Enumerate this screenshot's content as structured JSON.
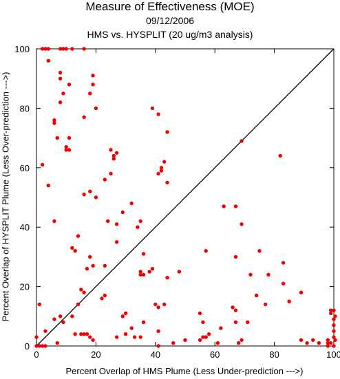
{
  "chart_data": {
    "type": "scatter",
    "title": "Measure of Effectiveness (MOE)",
    "subtitle": "09/12/2006",
    "subtitle2": "HMS vs. HYSPLIT  (20 ug/m3 analysis)",
    "xlabel": "Percent Overlap of HMS Plume (Less Under-prediction --->)",
    "ylabel": "Percent Overlap of HYSPLIT Plume (Less Over-prediction --->)",
    "xlim": [
      0,
      100
    ],
    "ylim": [
      0,
      100
    ],
    "xticks": [
      "0",
      "20",
      "40",
      "60",
      "80",
      "100"
    ],
    "yticks": [
      "0",
      "20",
      "40",
      "60",
      "80",
      "100"
    ],
    "reference_line": "y = x",
    "grid": false,
    "marker_color": "#ee0000",
    "points": [
      [
        2,
        100
      ],
      [
        3,
        100
      ],
      [
        4,
        100
      ],
      [
        8,
        100
      ],
      [
        9,
        100
      ],
      [
        10,
        100
      ],
      [
        12,
        100
      ],
      [
        16,
        100
      ],
      [
        4,
        96
      ],
      [
        8,
        92
      ],
      [
        8,
        90
      ],
      [
        11,
        88
      ],
      [
        9,
        85
      ],
      [
        8,
        82
      ],
      [
        18,
        85
      ],
      [
        19,
        91
      ],
      [
        19,
        88
      ],
      [
        20,
        80
      ],
      [
        39,
        80
      ],
      [
        41,
        78
      ],
      [
        44,
        72
      ],
      [
        16,
        77
      ],
      [
        6,
        76
      ],
      [
        6,
        75
      ],
      [
        7,
        70
      ],
      [
        11,
        70
      ],
      [
        10,
        67
      ],
      [
        11,
        66
      ],
      [
        10,
        66
      ],
      [
        25,
        66
      ],
      [
        26,
        64
      ],
      [
        26,
        63
      ],
      [
        27,
        65
      ],
      [
        69,
        69
      ],
      [
        82,
        64
      ],
      [
        2,
        61
      ],
      [
        4,
        54
      ],
      [
        23,
        56
      ],
      [
        25,
        58
      ],
      [
        18,
        52
      ],
      [
        16,
        51
      ],
      [
        20,
        50
      ],
      [
        41,
        58
      ],
      [
        42,
        59
      ],
      [
        43,
        62
      ],
      [
        44,
        55
      ],
      [
        42,
        60
      ],
      [
        63,
        47
      ],
      [
        67,
        47
      ],
      [
        29,
        45
      ],
      [
        32,
        48
      ],
      [
        6,
        42
      ],
      [
        24,
        42
      ],
      [
        27,
        41
      ],
      [
        35,
        42
      ],
      [
        34,
        40
      ],
      [
        69,
        41
      ],
      [
        14,
        37
      ],
      [
        12,
        33
      ],
      [
        13,
        32
      ],
      [
        18,
        30
      ],
      [
        19,
        27
      ],
      [
        27,
        35
      ],
      [
        36,
        31
      ],
      [
        57,
        32
      ],
      [
        67,
        30
      ],
      [
        75,
        32
      ],
      [
        72,
        24
      ],
      [
        78,
        24
      ],
      [
        83,
        28
      ],
      [
        74,
        17
      ],
      [
        83,
        21
      ],
      [
        85,
        15
      ],
      [
        89,
        18
      ],
      [
        77,
        14
      ],
      [
        23,
        27
      ],
      [
        17,
        26
      ],
      [
        35,
        25
      ],
      [
        35,
        24
      ],
      [
        36,
        24
      ],
      [
        38,
        25
      ],
      [
        39,
        26
      ],
      [
        44,
        23
      ],
      [
        48,
        25
      ],
      [
        15,
        19
      ],
      [
        16,
        18
      ],
      [
        23,
        17
      ],
      [
        22,
        16
      ],
      [
        14,
        14
      ],
      [
        12,
        10
      ],
      [
        8,
        10
      ],
      [
        6,
        9
      ],
      [
        3,
        5
      ],
      [
        16,
        4
      ],
      [
        18,
        3
      ],
      [
        27,
        3
      ],
      [
        29,
        10
      ],
      [
        30,
        11
      ],
      [
        33,
        3
      ],
      [
        36,
        8
      ],
      [
        35,
        3
      ],
      [
        41,
        13
      ],
      [
        41,
        0
      ],
      [
        43,
        14
      ],
      [
        55,
        11
      ],
      [
        56,
        8
      ],
      [
        56,
        3
      ],
      [
        57,
        3
      ],
      [
        61,
        1
      ],
      [
        62,
        6
      ],
      [
        66,
        13
      ],
      [
        67,
        12
      ],
      [
        67,
        8
      ],
      [
        69,
        2
      ],
      [
        71,
        8
      ],
      [
        68,
        1
      ],
      [
        89,
        2
      ],
      [
        91,
        1
      ],
      [
        93,
        2
      ],
      [
        95,
        1
      ],
      [
        98,
        2
      ],
      [
        98,
        0
      ],
      [
        98,
        1
      ],
      [
        99,
        11
      ],
      [
        99,
        12
      ],
      [
        100,
        12
      ],
      [
        100,
        9
      ],
      [
        100,
        7
      ],
      [
        100,
        5
      ],
      [
        100,
        3
      ],
      [
        100,
        0
      ],
      [
        101,
        2
      ],
      [
        1,
        14
      ],
      [
        1,
        0
      ],
      [
        0,
        0
      ],
      [
        2,
        0
      ],
      [
        3,
        0
      ],
      [
        7,
        1
      ],
      [
        9,
        8
      ],
      [
        15,
        4
      ],
      [
        17,
        4
      ],
      [
        30,
        4
      ],
      [
        32,
        6
      ],
      [
        41,
        5
      ],
      [
        46,
        1
      ],
      [
        40,
        14
      ],
      [
        50,
        2
      ],
      [
        0,
        3
      ],
      [
        19,
        2
      ],
      [
        13,
        4
      ],
      [
        55,
        2
      ],
      [
        58,
        4
      ],
      [
        101,
        10
      ],
      [
        99,
        1
      ]
    ]
  }
}
